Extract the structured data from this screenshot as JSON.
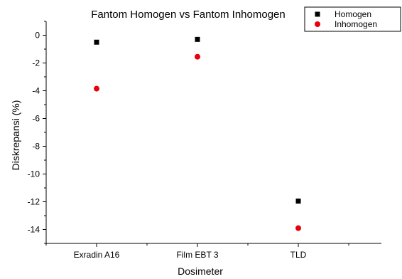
{
  "chart_data": {
    "type": "scatter",
    "title": "Fantom Homogen vs Fantom Inhomogen",
    "xlabel": "Dosimeter",
    "ylabel": "Diskrepansi (%)",
    "categories": [
      "Exradin A16",
      "Film EBT 3",
      "TLD"
    ],
    "ylim": [
      -15,
      1
    ],
    "yticks": [
      0,
      -2,
      -4,
      -6,
      -8,
      -10,
      -12,
      -14
    ],
    "grid": false,
    "legend_position": "top-right",
    "series": [
      {
        "name": "Homogen",
        "values": [
          -0.5,
          -0.3,
          -11.95
        ],
        "color": "#000000",
        "marker": "square"
      },
      {
        "name": "Inhomogen",
        "values": [
          -3.85,
          -1.55,
          -13.9
        ],
        "color": "#e8000b",
        "marker": "circle"
      }
    ]
  }
}
